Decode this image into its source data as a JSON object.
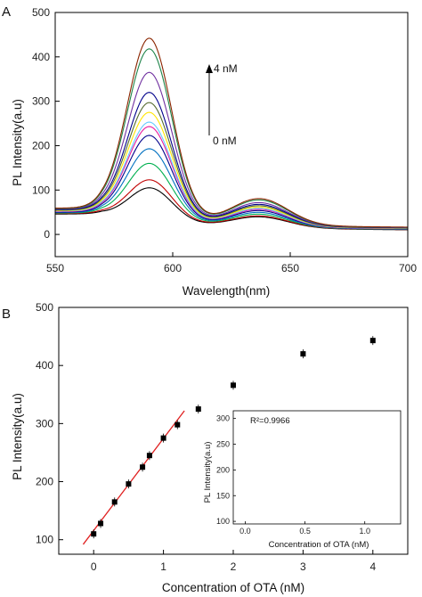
{
  "chart_data": [
    {
      "panel": "A",
      "type": "line",
      "xlabel": "Wavelength(nm)",
      "ylabel": "PL Intensity(a.u)",
      "xlim": [
        550,
        700
      ],
      "ylim": [
        -50,
        500
      ],
      "xticks": [
        550,
        600,
        650,
        700
      ],
      "yticks": [
        0,
        100,
        200,
        300,
        400,
        500
      ],
      "annotations": {
        "high": "4 nM",
        "low": "0 nM"
      },
      "series_colors": [
        "#000000",
        "#c00000",
        "#00b050",
        "#0070c0",
        "#00008b",
        "#e91e9f",
        "#66ccff",
        "#ffe600",
        "#556b2f",
        "#00008b",
        "#7030a0",
        "#1e8449",
        "#8b2500"
      ],
      "peak_values": [
        105,
        123,
        160,
        193,
        223,
        243,
        253,
        275,
        297,
        320,
        365,
        418,
        442
      ],
      "shoulder_values": [
        32,
        34,
        38,
        42,
        46,
        49,
        51,
        54,
        57,
        60,
        64,
        70,
        73
      ],
      "peak_wavelength": 590,
      "shoulder_wavelength": 637
    },
    {
      "panel": "B",
      "type": "scatter",
      "xlabel": "Concentration of OTA (nM)",
      "ylabel": "PL Intensity(a.u)",
      "xlim": [
        -0.5,
        4.5
      ],
      "ylim": [
        75,
        500
      ],
      "xticks": [
        0,
        1,
        2,
        3,
        4
      ],
      "yticks": [
        100,
        200,
        300,
        400,
        500
      ],
      "points": [
        {
          "x": 0,
          "y": 110
        },
        {
          "x": 0.1,
          "y": 128
        },
        {
          "x": 0.3,
          "y": 165
        },
        {
          "x": 0.5,
          "y": 196
        },
        {
          "x": 0.7,
          "y": 225
        },
        {
          "x": 0.8,
          "y": 245
        },
        {
          "x": 1.0,
          "y": 275
        },
        {
          "x": 1.2,
          "y": 298
        },
        {
          "x": 1.5,
          "y": 325
        },
        {
          "x": 2.0,
          "y": 366
        },
        {
          "x": 3.0,
          "y": 420
        },
        {
          "x": 4.0,
          "y": 443
        }
      ],
      "fit_line": {
        "x": [
          -0.15,
          1.3
        ],
        "y": [
          92,
          322
        ]
      },
      "inset": {
        "xlabel": "Concentration of OTA (nM)",
        "ylabel": "PL Intensity(a.u)",
        "annotation": "R²=0.9966",
        "xlim": [
          -0.1,
          1.3
        ],
        "ylim": [
          95,
          315
        ],
        "xticks": [
          0.0,
          0.5,
          1.0
        ],
        "xticklabels": [
          "0.0",
          "0.5",
          "1.0"
        ],
        "yticks": [
          100,
          150,
          200,
          250,
          300
        ],
        "points": [
          {
            "x": 0,
            "y": 110
          },
          {
            "x": 0.1,
            "y": 128
          },
          {
            "x": 0.3,
            "y": 165
          },
          {
            "x": 0.5,
            "y": 196
          },
          {
            "x": 0.7,
            "y": 225
          },
          {
            "x": 0.8,
            "y": 245
          },
          {
            "x": 1.0,
            "y": 275
          },
          {
            "x": 1.2,
            "y": 298
          }
        ],
        "fit_line": {
          "x": [
            0,
            1.2
          ],
          "y": [
            111,
            301
          ]
        }
      }
    }
  ],
  "labels": {
    "panel_a": "A",
    "panel_b": "B"
  }
}
